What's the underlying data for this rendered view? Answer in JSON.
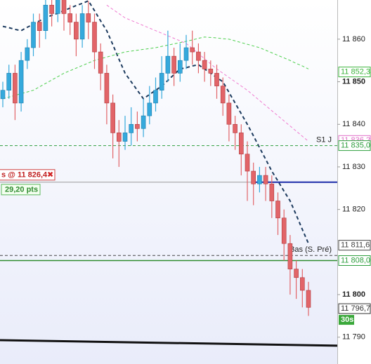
{
  "chart_data": {
    "type": "candlestick",
    "ylim": [
      11783.7,
      11869.2
    ],
    "yticks": [
      {
        "value": 11860,
        "label": "11 860"
      },
      {
        "value": 11850,
        "label": "11 850"
      },
      {
        "value": 11840,
        "label": "11 840"
      },
      {
        "value": 11830,
        "label": "11 830"
      },
      {
        "value": 11820,
        "label": "11 820"
      },
      {
        "value": 11800,
        "label": "11 800"
      },
      {
        "value": 11790,
        "label": "11 790"
      }
    ],
    "up_color": "#35a9dc",
    "down_color": "#e26468",
    "open": [
      11846,
      11848,
      11852,
      11845,
      11855,
      11858,
      11864,
      11862,
      11868,
      11866,
      11870,
      11866,
      11864,
      11860,
      11866,
      11864,
      11857,
      11852,
      11845,
      11838,
      11836,
      11838,
      11840,
      11839,
      11842,
      11845,
      11848,
      11852,
      11856,
      11852,
      11855,
      11858,
      11857,
      11855,
      11853,
      11852,
      11849,
      11845,
      11840,
      11838,
      11833,
      11829,
      11826,
      11828,
      11826,
      11822,
      11818,
      11812,
      11806,
      11804,
      11801
    ],
    "close": [
      11848,
      11852,
      11845,
      11855,
      11858,
      11864,
      11862,
      11868,
      11866,
      11870,
      11866,
      11864,
      11860,
      11866,
      11864,
      11857,
      11852,
      11845,
      11838,
      11836,
      11838,
      11840,
      11839,
      11842,
      11845,
      11848,
      11852,
      11856,
      11852,
      11855,
      11858,
      11857,
      11855,
      11853,
      11852,
      11849,
      11845,
      11840,
      11838,
      11833,
      11829,
      11826,
      11828,
      11826,
      11822,
      11818,
      11812,
      11806,
      11804,
      11801,
      11797
    ],
    "high": [
      11850,
      11854,
      11854,
      11857,
      11860,
      11866,
      11866,
      11870,
      11870,
      11872,
      11872,
      11868,
      11866,
      11868,
      11869,
      11866,
      11859,
      11854,
      11847,
      11841,
      11842,
      11844,
      11843,
      11846,
      11849,
      11851,
      11856,
      11862,
      11858,
      11859,
      11861,
      11862,
      11859,
      11857,
      11855,
      11854,
      11851,
      11847,
      11842,
      11840,
      11836,
      11831,
      11830,
      11830,
      11828,
      11824,
      11820,
      11814,
      11808,
      11806,
      11803
    ],
    "low": [
      11844,
      11846,
      11841,
      11843,
      11853,
      11856,
      11858,
      11860,
      11863,
      11864,
      11862,
      11861,
      11856,
      11858,
      11860,
      11853,
      11848,
      11840,
      11832,
      11830,
      11834,
      11835,
      11836,
      11837,
      11840,
      11843,
      11846,
      11850,
      11849,
      11850,
      11853,
      11854,
      11852,
      11850,
      11849,
      11846,
      11842,
      11836,
      11834,
      11828,
      11822,
      11821,
      11824,
      11822,
      11818,
      11814,
      11808,
      11800,
      11799,
      11797,
      11795
    ],
    "lines": [
      {
        "color": "#1c3a5e",
        "width": 2,
        "values": [
          11863,
          11862.7,
          11862.3,
          11862,
          11862.8,
          11863.5,
          11864.3,
          11865,
          11865.6,
          11866.1,
          11866.7,
          11867.3,
          11867.9,
          11868.4,
          11869,
          11866.7,
          11864.3,
          11862,
          11858.7,
          11855.3,
          11852,
          11850,
          11848,
          11846,
          11847,
          11848,
          11849,
          11850.3,
          11851.7,
          11853,
          11853.3,
          11853.7,
          11854,
          11853,
          11852,
          11851,
          11850,
          11847.5,
          11845,
          11842.5,
          11840,
          11837.3,
          11834.5,
          11831.8,
          11829,
          11826.7,
          11824.3,
          11822,
          11818.7,
          11815.3,
          11812
        ]
      },
      {
        "color": "#4ccf4c",
        "width": 1,
        "values": [
          11846,
          11846.4,
          11846.8,
          11847.2,
          11847.6,
          11848,
          11848.8,
          11849.6,
          11850.4,
          11851.2,
          11852,
          11852.6,
          11853.2,
          11853.8,
          11854.4,
          11855,
          11855.4,
          11855.8,
          11856.2,
          11856.6,
          11857,
          11857.2,
          11857.4,
          11857.6,
          11857.8,
          11858,
          11858.3,
          11858.6,
          11858.9,
          11859.2,
          11859.5,
          11859.8,
          11860.2,
          11860.5,
          11860.4,
          11860.3,
          11860.1,
          11860,
          11859.6,
          11859.2,
          11858.8,
          11858.4,
          11858,
          11857.4,
          11856.8,
          11856.2,
          11855.6,
          11855,
          11854.3,
          11853.7,
          11853
        ]
      },
      {
        "color": "#f07ad0",
        "width": 1,
        "values": [
          null,
          null,
          null,
          null,
          null,
          null,
          null,
          null,
          null,
          null,
          null,
          null,
          null,
          null,
          null,
          null,
          null,
          11868,
          11867,
          11866,
          11865,
          11864.4,
          11863.8,
          11863.2,
          11862.6,
          11862,
          11861.4,
          11860.8,
          11860.2,
          11859.6,
          11859,
          11857.8,
          11856.6,
          11855.4,
          11854.2,
          11853,
          11852,
          11851,
          11850,
          11849,
          11848,
          11846.8,
          11845.6,
          11844.4,
          11843.2,
          11842,
          11840.8,
          11839.6,
          11838.4,
          11837.2,
          11836
        ]
      }
    ],
    "levels": [
      {
        "value": 11835.0,
        "color": "#2e9e3e",
        "dash": true,
        "label": "S1 J"
      },
      {
        "value": 11809.2,
        "color": "#444444",
        "dash": true,
        "label": "Bas (S. Pré)"
      },
      {
        "value": 11808.0,
        "color": "#2e8b2e",
        "dash": false
      }
    ],
    "order": {
      "price": 11826.4,
      "label": "s @ 11 826,4",
      "close": "✖",
      "pnl": "29,20 pts",
      "line_color": "#999999",
      "stop_color": "#1a2aa8"
    },
    "trendline": {
      "values": [
        11789.3,
        11788.0
      ],
      "color": "#111111"
    },
    "price_tags": [
      {
        "value": 11852.3,
        "label": "11 852,3",
        "color": "#3cb43c"
      },
      {
        "value": 11836.2,
        "label": "11 836,2",
        "color": "#e070c8"
      },
      {
        "value": 11835.0,
        "label": "11 835,0",
        "color": "#2e9e3e"
      },
      {
        "value": 11811.6,
        "label": "11 811,6",
        "color": "#444444"
      },
      {
        "value": 11808.0,
        "label": "11 808,0",
        "color": "#2e9e3e"
      },
      {
        "value": 11796.7,
        "label": "11 796,7",
        "color": "#333333"
      }
    ],
    "countdown": "30s"
  }
}
